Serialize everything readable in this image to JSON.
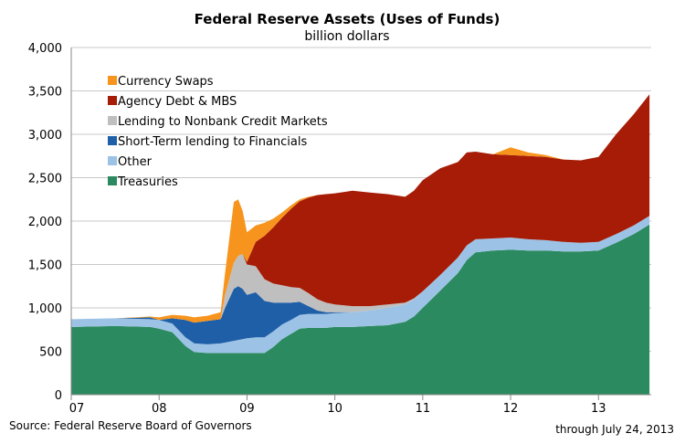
{
  "chart_data": {
    "type": "area",
    "stacked": true,
    "title": "Federal Reserve Assets (Uses of Funds)",
    "subtitle": "billion dollars",
    "source": "Source: Federal Reserve Board of Governors",
    "note": "through July 24, 2013",
    "ylim": [
      0,
      4000
    ],
    "yticks": [
      0,
      500,
      1000,
      1500,
      2000,
      2500,
      3000,
      3500,
      4000
    ],
    "ytick_labels": [
      "0",
      "500",
      "1,000",
      "1,500",
      "2,000",
      "2,500",
      "3,000",
      "3,500",
      "4,000"
    ],
    "xlim": [
      2007.0,
      2013.6
    ],
    "xticks": [
      2007,
      2008,
      2009,
      2010,
      2011,
      2012,
      2013
    ],
    "xtick_labels": [
      "07",
      "08",
      "09",
      "10",
      "11",
      "12",
      "13"
    ],
    "grid": true,
    "legend_position": "top-left",
    "x": [
      2007.0,
      2007.5,
      2007.9,
      2008.0,
      2008.15,
      2008.3,
      2008.4,
      2008.55,
      2008.7,
      2008.75,
      2008.85,
      2008.9,
      2008.95,
      2009.0,
      2009.1,
      2009.2,
      2009.3,
      2009.4,
      2009.5,
      2009.6,
      2009.7,
      2009.8,
      2009.9,
      2010.0,
      2010.2,
      2010.4,
      2010.6,
      2010.8,
      2010.9,
      2011.0,
      2011.2,
      2011.4,
      2011.5,
      2011.6,
      2011.8,
      2012.0,
      2012.2,
      2012.4,
      2012.6,
      2012.8,
      2013.0,
      2013.2,
      2013.4,
      2013.58
    ],
    "series": [
      {
        "name": "Treasuries",
        "color": "#2b8a5f",
        "values": [
          780,
          790,
          780,
          760,
          720,
          560,
          490,
          480,
          480,
          480,
          480,
          480,
          480,
          480,
          480,
          480,
          550,
          640,
          700,
          760,
          770,
          770,
          770,
          780,
          780,
          790,
          800,
          840,
          900,
          1000,
          1200,
          1400,
          1550,
          1640,
          1660,
          1670,
          1660,
          1660,
          1650,
          1650,
          1660,
          1750,
          1850,
          1960
        ]
      },
      {
        "name": "Other",
        "color": "#9cc3e5",
        "values": [
          90,
          90,
          90,
          100,
          100,
          100,
          100,
          100,
          110,
          120,
          140,
          150,
          160,
          170,
          180,
          180,
          180,
          170,
          160,
          160,
          160,
          160,
          160,
          160,
          170,
          180,
          200,
          200,
          200,
          190,
          180,
          180,
          170,
          150,
          140,
          140,
          130,
          120,
          110,
          100,
          100,
          100,
          100,
          100
        ]
      },
      {
        "name": "Short-Term lending to Financials",
        "color": "#1f5fa7",
        "values": [
          0,
          0,
          20,
          0,
          60,
          200,
          240,
          270,
          280,
          400,
          600,
          620,
          580,
          500,
          520,
          420,
          330,
          250,
          200,
          150,
          90,
          40,
          20,
          10,
          0,
          0,
          0,
          0,
          0,
          0,
          0,
          0,
          0,
          0,
          0,
          0,
          0,
          0,
          0,
          0,
          0,
          0,
          0,
          0
        ]
      },
      {
        "name": "Lending to Nonbank Credit Markets",
        "color": "#bfbfbf",
        "values": [
          0,
          0,
          0,
          0,
          0,
          0,
          0,
          0,
          0,
          150,
          300,
          350,
          400,
          350,
          300,
          250,
          220,
          200,
          180,
          160,
          150,
          130,
          110,
          90,
          70,
          50,
          40,
          20,
          10,
          0,
          0,
          0,
          0,
          0,
          0,
          0,
          0,
          0,
          0,
          0,
          0,
          0,
          0,
          0
        ]
      },
      {
        "name": "Agency Debt & MBS",
        "color": "#a61c07",
        "values": [
          0,
          0,
          0,
          0,
          0,
          0,
          0,
          0,
          0,
          0,
          0,
          0,
          0,
          30,
          280,
          500,
          650,
          780,
          900,
          1000,
          1100,
          1200,
          1250,
          1280,
          1330,
          1310,
          1270,
          1220,
          1240,
          1280,
          1230,
          1100,
          1070,
          1010,
          970,
          950,
          960,
          960,
          950,
          950,
          980,
          1150,
          1280,
          1400
        ]
      },
      {
        "name": "Currency Swaps",
        "color": "#f7941d",
        "values": [
          0,
          0,
          10,
          30,
          40,
          50,
          60,
          60,
          80,
          250,
          700,
          650,
          500,
          340,
          190,
          150,
          100,
          60,
          40,
          20,
          10,
          0,
          0,
          0,
          0,
          0,
          0,
          0,
          0,
          0,
          0,
          0,
          0,
          0,
          0,
          90,
          40,
          20,
          0,
          0,
          0,
          0,
          0,
          0
        ]
      }
    ]
  }
}
